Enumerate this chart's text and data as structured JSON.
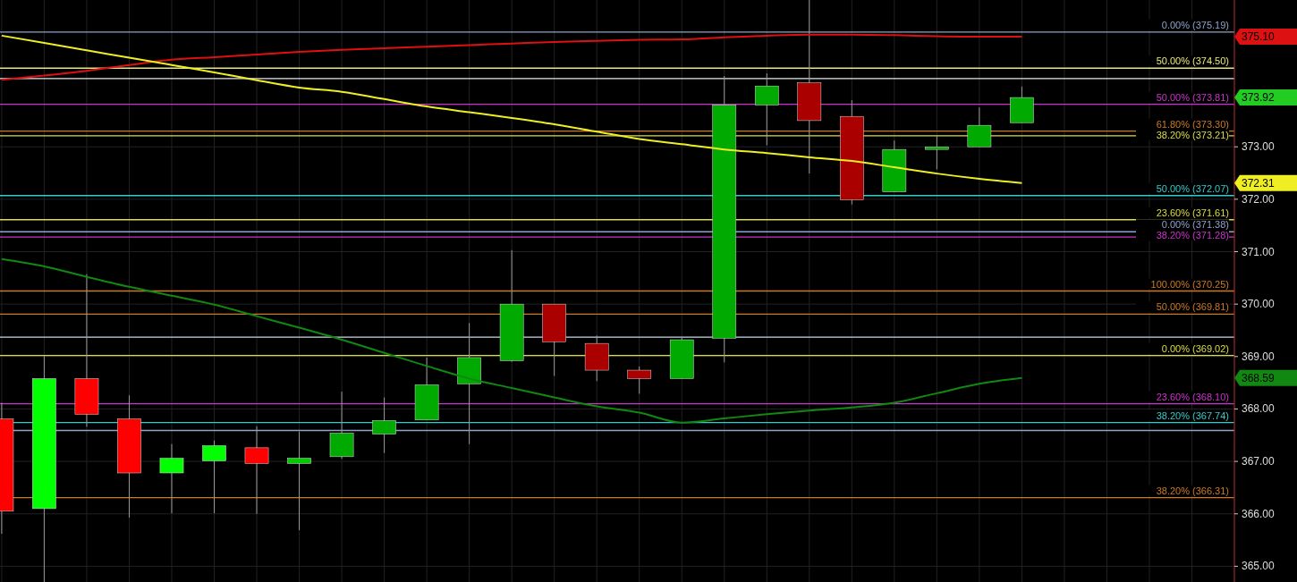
{
  "chart_data": {
    "type": "candlestick",
    "categories": [
      null,
      null,
      null,
      null,
      null,
      null,
      null,
      null,
      null,
      null,
      null,
      null,
      null,
      null,
      null,
      null,
      null,
      null,
      null,
      null,
      null,
      null,
      null,
      null,
      null,
      null,
      null,
      null,
      null,
      null
    ],
    "ohlc": [
      [
        367.81,
        368.12,
        365.62,
        366.05
      ],
      [
        366.1,
        369.01,
        364.7,
        368.58
      ],
      [
        368.58,
        370.57,
        367.66,
        367.9
      ],
      [
        367.81,
        368.26,
        365.93,
        366.78
      ],
      [
        366.78,
        367.33,
        366.01,
        367.06
      ],
      [
        367.01,
        367.4,
        366.01,
        367.3
      ],
      [
        367.26,
        367.67,
        366.0,
        366.96
      ],
      [
        366.96,
        367.57,
        365.69,
        367.06
      ],
      [
        367.09,
        368.33,
        367.05,
        367.54
      ],
      [
        367.52,
        368.22,
        367.16,
        367.78
      ],
      [
        367.79,
        368.98,
        367.79,
        368.46
      ],
      [
        368.48,
        369.64,
        367.33,
        368.98
      ],
      [
        368.92,
        371.03,
        368.9,
        370.0
      ],
      [
        370.0,
        370.0,
        368.63,
        369.28
      ],
      [
        369.25,
        369.4,
        368.53,
        368.74
      ],
      [
        368.74,
        368.81,
        368.29,
        368.58
      ],
      [
        368.58,
        369.37,
        368.58,
        369.32
      ],
      [
        369.35,
        374.35,
        368.89,
        373.8
      ],
      [
        373.8,
        374.4,
        373.03,
        374.16
      ],
      [
        374.22,
        375.83,
        372.49,
        373.5
      ],
      [
        373.58,
        373.89,
        371.9,
        371.99
      ],
      [
        372.14,
        373.12,
        372.14,
        372.95
      ],
      [
        372.95,
        373.22,
        372.57,
        373.0
      ],
      [
        373.0,
        373.75,
        373.0,
        373.41
      ],
      [
        373.46,
        374.15,
        373.46,
        373.94
      ],
      null,
      null,
      null,
      null,
      null
    ],
    "colors": [
      "#ff0000",
      "#00ff00",
      "#ff0000",
      "#ff0000",
      "#00ff00",
      "#00ff00",
      "#ff0000",
      "#00cc00",
      "#00aa00",
      "#00aa00",
      "#00aa00",
      "#00aa00",
      "#00aa00",
      "#aa0000",
      "#aa0000",
      "#aa0000",
      "#00aa00",
      "#00aa00",
      "#00aa00",
      "#aa0000",
      "#aa0000",
      "#00aa00",
      "#00aa00",
      "#00aa00",
      "#00aa00",
      null,
      null,
      null,
      null,
      null
    ],
    "series": [
      {
        "type": "line",
        "color": "#dd1111",
        "values": [
          374.28,
          374.36,
          374.45,
          374.56,
          374.66,
          374.71,
          374.76,
          374.81,
          374.85,
          374.88,
          374.91,
          374.94,
          374.97,
          375.0,
          375.02,
          375.04,
          375.05,
          375.09,
          375.12,
          375.14,
          375.14,
          375.13,
          375.11,
          375.1,
          375.1,
          null,
          null,
          null,
          null,
          null
        ]
      },
      {
        "type": "line",
        "color": "#eeee22",
        "values": [
          375.12,
          374.98,
          374.84,
          374.7,
          374.56,
          374.42,
          374.27,
          374.13,
          374.05,
          373.91,
          373.77,
          373.66,
          373.55,
          373.43,
          373.29,
          373.15,
          373.05,
          372.95,
          372.88,
          372.8,
          372.73,
          372.61,
          372.49,
          372.39,
          372.31,
          null,
          null,
          null,
          null,
          null
        ]
      },
      {
        "type": "line",
        "color": "#118811",
        "values": [
          370.86,
          370.72,
          370.52,
          370.33,
          370.16,
          369.99,
          369.77,
          369.55,
          369.32,
          369.07,
          368.82,
          368.58,
          368.4,
          368.22,
          368.05,
          367.93,
          367.74,
          367.82,
          367.9,
          367.97,
          368.03,
          368.12,
          368.3,
          368.48,
          368.59,
          null,
          null,
          null,
          null,
          null
        ]
      }
    ],
    "ylim": [
      364.7,
      375.8
    ],
    "yticks": [
      {
        "value": 365,
        "label": "365.00"
      },
      {
        "value": 366,
        "label": "366.00"
      },
      {
        "value": 367,
        "label": "367.00"
      },
      {
        "value": 368,
        "label": "368.00"
      },
      {
        "value": 369,
        "label": "369.00"
      },
      {
        "value": 370,
        "label": "370.00"
      },
      {
        "value": 371,
        "label": "371.00"
      },
      {
        "value": 372,
        "label": "372.00"
      },
      {
        "value": 373,
        "label": "373.00"
      }
    ],
    "grid": true,
    "ref_lines": [
      {
        "axis": "y",
        "value": 375.19,
        "label": "0.00% (375.19)",
        "color": "#8fa3c8"
      },
      {
        "axis": "y",
        "value": 374.5,
        "label": "50.00% (374.50)",
        "color": "#e8e87a"
      },
      {
        "axis": "y",
        "value": 374.3,
        "color": "#e8e8e8"
      },
      {
        "axis": "y",
        "value": 373.81,
        "label": "50.00% (373.81)",
        "color": "#cc33cc"
      },
      {
        "axis": "y",
        "value": 373.3,
        "label": "61.80% (373.30)",
        "color": "#cc7a22"
      },
      {
        "axis": "y",
        "value": 373.21,
        "label": "38.20% (373.21)",
        "color": "#dddd44"
      },
      {
        "axis": "y",
        "value": 372.07,
        "label": "50.00% (372.07)",
        "color": "#33cccc"
      },
      {
        "axis": "y",
        "value": 371.61,
        "label": "23.60% (371.61)",
        "color": "#dddd44"
      },
      {
        "axis": "y",
        "value": 371.38,
        "label": "0.00% (371.38)",
        "color": "#8fa3c8"
      },
      {
        "axis": "y",
        "value": 371.28,
        "label": "38.20% (371.28)",
        "color": "#cc33cc"
      },
      {
        "axis": "y",
        "value": 370.25,
        "label": "100.00% (370.25)",
        "color": "#cc7a22"
      },
      {
        "axis": "y",
        "value": 369.81,
        "label": "50.00% (369.81)",
        "color": "#cc7a22"
      },
      {
        "axis": "y",
        "value": 369.37,
        "color": "#c8d8e8"
      },
      {
        "axis": "y",
        "value": 369.02,
        "label": "0.00% (369.02)",
        "color": "#dddd44"
      },
      {
        "axis": "y",
        "value": 368.1,
        "label": "23.60% (368.10)",
        "color": "#cc33cc"
      },
      {
        "axis": "y",
        "value": 367.74,
        "label": "38.20% (367.74)",
        "color": "#33cccc"
      },
      {
        "axis": "y",
        "value": 367.59,
        "color": "#8fa3c8"
      },
      {
        "axis": "y",
        "value": 366.31,
        "label": "38.20% (366.31)",
        "color": "#cc7a22"
      }
    ],
    "annotations": [
      "375.10",
      "373.92",
      "372.31",
      "368.59"
    ]
  }
}
